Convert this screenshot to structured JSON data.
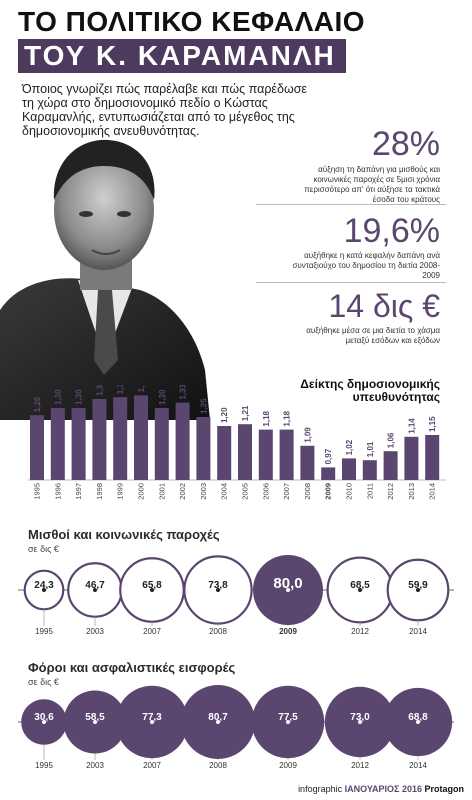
{
  "header": {
    "title_line1": "ΤΟ ΠΟΛΙΤΙΚΟ ΚΕΦΑΛΑΙΟ",
    "title_line2": "ΤΟΥ Κ. ΚΑΡΑΜΑΝΛΗ",
    "intro": "Όποιος γνωρίζει πώς παρέλαβε και πώς παρέδωσε τη χώρα στο δημοσιονομικό πεδίο ο Κώστας Καραμανλής, εντυπωσιάζεται από το μέγεθος της δημοσιονομικής ανευθυνότητας."
  },
  "stats": [
    {
      "number": "28%",
      "desc": "αύξηση τη δαπάνη για μισθούς και κοινωνικές παροχές σε 5μισι χρόνια περισσότερο απ' ότι αύξησε τα τακτικά έσοδα του κράτους"
    },
    {
      "number": "19,6%",
      "desc": "αυξήθηκε η κατά κεφαλήν δαπάνη ανά συνταξιούχο του δημοσίου τη διετία 2008-2009"
    },
    {
      "number": "14 δις €",
      "desc": "αυξήθηκε μέσα σε μια διετία το χάσμα μεταξύ εσόδων και εξόδων"
    }
  ],
  "colors": {
    "accent": "#5b4670",
    "accent_dark": "#4e3a5e",
    "grid": "#999999"
  },
  "chart_data": [
    {
      "type": "bar",
      "title": "Δείκτης δημοσιονομικής υπευθυνότητας",
      "categories": [
        "1995",
        "1996",
        "1997",
        "1998",
        "1999",
        "2000",
        "2001",
        "2002",
        "2003",
        "2004",
        "2005",
        "2006",
        "2007",
        "2008",
        "2009",
        "2010",
        "2011",
        "2012",
        "2013",
        "2014"
      ],
      "values": [
        1.26,
        1.3,
        1.3,
        1.35,
        1.36,
        1.37,
        1.3,
        1.33,
        1.25,
        1.2,
        1.21,
        1.18,
        1.18,
        1.09,
        0.97,
        1.02,
        1.01,
        1.06,
        1.14,
        1.15
      ],
      "value_labels": [
        "1,26",
        "1,30",
        "1,30",
        "1,35",
        "1,36",
        "1,37",
        "1,30",
        "1,33",
        "1,25",
        "1,20",
        "1,21",
        "1,18",
        "1,18",
        "1,09",
        "0,97",
        "1,02",
        "1,01",
        "1,06",
        "1,14",
        "1,15"
      ],
      "highlight": "2009",
      "ylim": [
        0.9,
        1.4
      ]
    },
    {
      "type": "scatter",
      "title": "Μισθοί και κοινωνικές παροχές",
      "unit": "σε δις €",
      "x": [
        "1995",
        "2003",
        "2007",
        "2008",
        "2009",
        "2012",
        "2014"
      ],
      "values": [
        24.3,
        46.7,
        65.8,
        73.8,
        80.0,
        68.5,
        59.9
      ],
      "value_labels": [
        "24,3",
        "46,7",
        "65,8",
        "73,8",
        "80,0",
        "68,5",
        "59,9"
      ],
      "filled": [
        false,
        false,
        false,
        false,
        true,
        false,
        false
      ],
      "highlight": "2009"
    },
    {
      "type": "scatter",
      "title": "Φόροι και ασφαλιστικές εισφορές",
      "unit": "σε δις €",
      "x": [
        "1995",
        "2003",
        "2007",
        "2008",
        "2009",
        "2012",
        "2014"
      ],
      "values": [
        30.6,
        58.5,
        77.3,
        80.7,
        77.5,
        73.0,
        68.8
      ],
      "value_labels": [
        "30,6",
        "58,5",
        "77,3",
        "80,7",
        "77,5",
        "73,0",
        "68,8"
      ],
      "filled": [
        true,
        true,
        true,
        true,
        true,
        true,
        true
      ]
    }
  ],
  "footer": {
    "prefix": "infographic",
    "month": "ΙΑΝΟΥΑΡΙΟΣ 2016",
    "brand": "Protagon"
  }
}
